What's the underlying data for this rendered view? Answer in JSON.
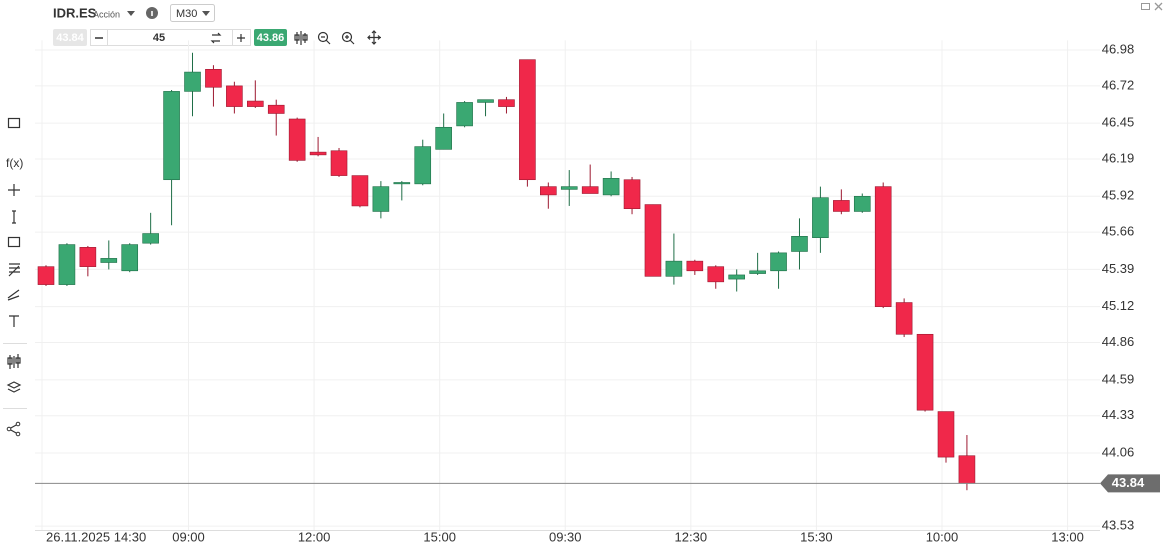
{
  "chart_data": {
    "type": "candlestick",
    "symbol": "IDR.ES",
    "instrument_type": "Acción",
    "timeframe": "M30",
    "quantity": 45,
    "ask": 43.86,
    "function_button": "f(x)",
    "up_color": "#3aa872",
    "down_color": "#f0284a",
    "categories": [
      "26.11.2025 14:30",
      null,
      null,
      null,
      null,
      null,
      null,
      "09:00",
      null,
      null,
      null,
      null,
      null,
      "12:00",
      null,
      null,
      null,
      null,
      null,
      "15:00",
      null,
      null,
      null,
      null,
      null,
      "09:30",
      null,
      null,
      null,
      null,
      null,
      "12:30",
      null,
      null,
      null,
      null,
      null,
      "15:30",
      null,
      null,
      null,
      null,
      null,
      "10:00",
      null,
      null,
      null,
      null,
      null,
      "13:00"
    ],
    "open": [
      45.41,
      45.28,
      45.55,
      45.44,
      45.38,
      45.58,
      46.04,
      46.68,
      46.84,
      46.72,
      46.61,
      46.58,
      46.48,
      46.24,
      46.25,
      46.07,
      45.81,
      46.01,
      46.01,
      46.26,
      46.43,
      46.6,
      46.62,
      46.91,
      45.99,
      45.97,
      45.99,
      45.93,
      46.04,
      45.86,
      45.34,
      45.45,
      45.41,
      45.32,
      45.36,
      45.38,
      45.52,
      45.62,
      45.89,
      45.81,
      45.99,
      45.15,
      44.92,
      44.36,
      44.04,
      null,
      null,
      null,
      null,
      null
    ],
    "high": [
      45.42,
      45.58,
      45.56,
      45.6,
      45.58,
      45.8,
      46.69,
      46.96,
      46.87,
      46.75,
      46.76,
      46.62,
      46.49,
      46.35,
      46.27,
      46.07,
      46.03,
      46.03,
      46.33,
      46.52,
      46.61,
      46.62,
      46.64,
      46.91,
      46.02,
      46.11,
      46.15,
      46.1,
      46.06,
      45.86,
      45.65,
      45.46,
      45.42,
      45.39,
      45.51,
      45.52,
      45.76,
      45.99,
      45.97,
      45.94,
      46.02,
      45.18,
      44.92,
      44.36,
      44.19,
      null,
      null,
      null,
      null,
      null
    ],
    "low": [
      45.27,
      45.27,
      45.34,
      45.39,
      45.37,
      45.57,
      45.71,
      46.5,
      46.57,
      46.52,
      46.56,
      46.36,
      46.17,
      46.21,
      46.06,
      45.84,
      45.76,
      45.89,
      46.0,
      46.26,
      46.42,
      46.5,
      46.52,
      45.99,
      45.83,
      45.85,
      45.94,
      45.92,
      45.79,
      45.34,
      45.28,
      45.35,
      45.25,
      45.23,
      45.35,
      45.25,
      45.39,
      45.51,
      45.79,
      45.8,
      45.11,
      44.9,
      44.36,
      43.99,
      43.79,
      null,
      null,
      null,
      null,
      null
    ],
    "close": [
      45.28,
      45.57,
      45.41,
      45.47,
      45.57,
      45.65,
      46.68,
      46.82,
      46.71,
      46.57,
      46.57,
      46.52,
      46.18,
      46.22,
      46.07,
      45.85,
      45.99,
      46.02,
      46.28,
      46.42,
      46.6,
      46.62,
      46.57,
      46.04,
      45.93,
      45.99,
      45.94,
      46.05,
      45.83,
      45.34,
      45.45,
      45.38,
      45.3,
      45.35,
      45.38,
      45.51,
      45.63,
      45.91,
      45.81,
      45.92,
      45.12,
      44.92,
      44.37,
      44.03,
      43.84,
      null,
      null,
      null,
      null,
      null
    ],
    "ylim": [
      43.4,
      47.05
    ],
    "yticks": [
      46.98,
      46.72,
      46.45,
      46.19,
      45.92,
      45.66,
      45.39,
      45.12,
      44.86,
      44.59,
      44.33,
      44.06,
      43.53
    ],
    "grid": true
  }
}
